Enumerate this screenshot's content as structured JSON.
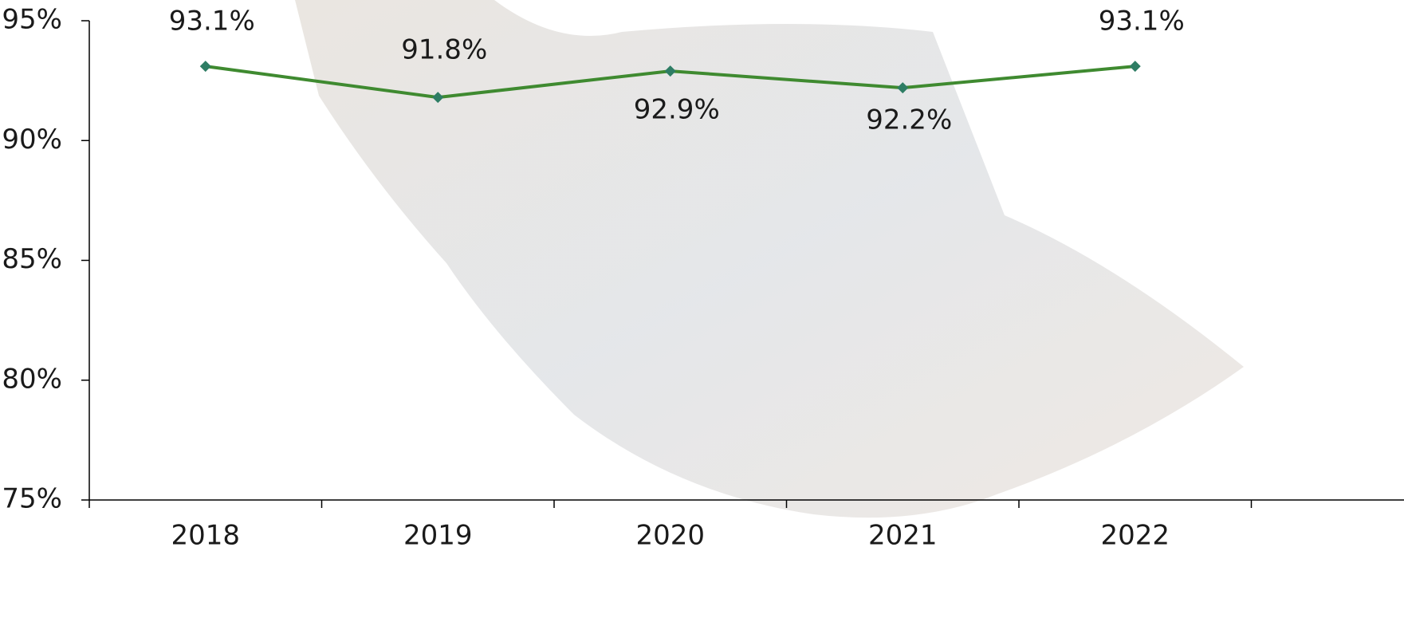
{
  "chart_data": {
    "type": "line",
    "categories": [
      "2018",
      "2019",
      "2020",
      "2021",
      "2022"
    ],
    "series": [
      {
        "color": "#3f8a30",
        "marker_color": "#2e7d64",
        "values": [
          93.1,
          91.8,
          92.9,
          92.2,
          93.1
        ],
        "value_labels": [
          "93.1%",
          "91.8%",
          "92.9%",
          "92.2%",
          "93.1%"
        ]
      }
    ],
    "ylim": [
      75,
      95
    ],
    "yticks": [
      {
        "value": 75,
        "label": "75%"
      },
      {
        "value": 80,
        "label": "80%"
      },
      {
        "value": 85,
        "label": "85%"
      },
      {
        "value": 90,
        "label": "90%"
      },
      {
        "value": 95,
        "label": "95%"
      }
    ]
  }
}
